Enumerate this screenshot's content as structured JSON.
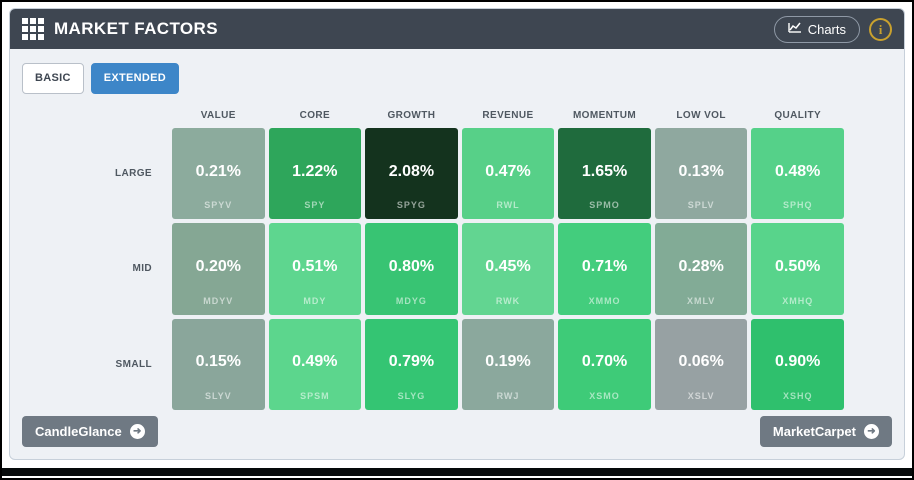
{
  "header": {
    "title": "MARKET FACTORS",
    "charts_button_label": "Charts",
    "info_icon_glyph": "i"
  },
  "view_toggle": {
    "basic_label": "BASIC",
    "extended_label": "EXTENDED",
    "active": "EXTENDED"
  },
  "colors": {
    "header_bg": "#3e4651",
    "active_toggle_bg": "#3d86c8",
    "footer_button_bg": "#6f7983",
    "info_icon_accent": "#c9a12e",
    "panel_bg": "#eef1f5"
  },
  "chart_data": {
    "type": "heatmap",
    "title": "MARKET FACTORS",
    "columns": [
      "VALUE",
      "CORE",
      "GROWTH",
      "REVENUE",
      "MOMENTUM",
      "LOW VOL",
      "QUALITY"
    ],
    "rows": [
      "LARGE",
      "MID",
      "SMALL"
    ],
    "cells": [
      [
        {
          "value": "0.21%",
          "ticker": "SPYV",
          "color": "#8cab9d"
        },
        {
          "value": "1.22%",
          "ticker": "SPY",
          "color": "#2ea65b"
        },
        {
          "value": "2.08%",
          "ticker": "SPYG",
          "color": "#14331e"
        },
        {
          "value": "0.47%",
          "ticker": "RWL",
          "color": "#57d088"
        },
        {
          "value": "1.65%",
          "ticker": "SPMO",
          "color": "#1f6b3d"
        },
        {
          "value": "0.13%",
          "ticker": "SPLV",
          "color": "#8fa89f"
        },
        {
          "value": "0.48%",
          "ticker": "SPHQ",
          "color": "#55d189"
        }
      ],
      [
        {
          "value": "0.20%",
          "ticker": "MDYV",
          "color": "#85a794"
        },
        {
          "value": "0.51%",
          "ticker": "MDY",
          "color": "#5ed68f"
        },
        {
          "value": "0.80%",
          "ticker": "MDYG",
          "color": "#38c473"
        },
        {
          "value": "0.45%",
          "ticker": "RWK",
          "color": "#62d591"
        },
        {
          "value": "0.71%",
          "ticker": "XMMO",
          "color": "#43cd7d"
        },
        {
          "value": "0.28%",
          "ticker": "XMLV",
          "color": "#82ab96"
        },
        {
          "value": "0.50%",
          "ticker": "XMHQ",
          "color": "#58d48b"
        }
      ],
      [
        {
          "value": "0.15%",
          "ticker": "SLYV",
          "color": "#8aa69b"
        },
        {
          "value": "0.49%",
          "ticker": "SPSM",
          "color": "#5cd68d"
        },
        {
          "value": "0.79%",
          "ticker": "SLYG",
          "color": "#34c573"
        },
        {
          "value": "0.19%",
          "ticker": "RWJ",
          "color": "#8ba89d"
        },
        {
          "value": "0.70%",
          "ticker": "XSMO",
          "color": "#3ecb78"
        },
        {
          "value": "0.06%",
          "ticker": "XSLV",
          "color": "#97a1a3"
        },
        {
          "value": "0.90%",
          "ticker": "XSHQ",
          "color": "#2fc06d"
        }
      ]
    ]
  },
  "footer": {
    "candleglance_label": "CandleGlance",
    "marketcarpet_label": "MarketCarpet",
    "arrow_icon_glyph": "➜"
  }
}
